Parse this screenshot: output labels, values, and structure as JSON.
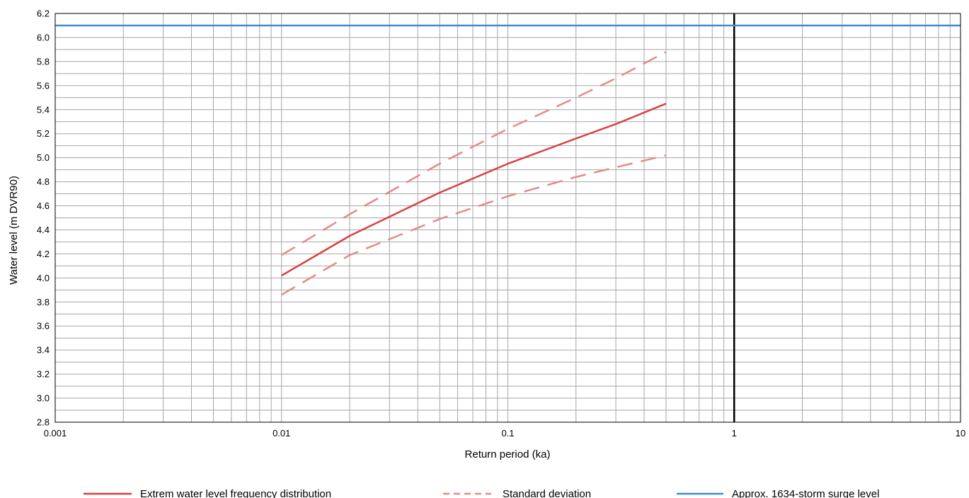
{
  "chart_data": {
    "type": "line",
    "title": "",
    "xlabel": "Return period (ka)",
    "ylabel": "Water level (m DVR90)",
    "xscale": "log",
    "xlim": [
      0.001,
      10
    ],
    "ylim": [
      2.8,
      6.2
    ],
    "x_ticks": [
      {
        "value": 0.001,
        "label": "0.001"
      },
      {
        "value": 0.01,
        "label": "0.01"
      },
      {
        "value": 0.1,
        "label": "0.1"
      },
      {
        "value": 1,
        "label": "1"
      },
      {
        "value": 10,
        "label": "10"
      }
    ],
    "y_ticks": [
      "2.8",
      "3.0",
      "3.2",
      "3.4",
      "3.6",
      "3.8",
      "4.0",
      "4.2",
      "4.4",
      "4.6",
      "4.8",
      "5.0",
      "5.2",
      "5.4",
      "5.6",
      "5.8",
      "6.0",
      "6.2"
    ],
    "grid": true,
    "vertical_reference_line": 1,
    "legend_position": "bottom",
    "series": [
      {
        "name": "Extrem water level frequency distribution",
        "color": "#d94141",
        "style": "solid",
        "x": [
          0.01,
          0.02,
          0.05,
          0.1,
          0.2,
          0.3,
          0.5
        ],
        "y": [
          4.02,
          4.35,
          4.71,
          4.95,
          5.16,
          5.28,
          5.45
        ]
      },
      {
        "name": "Standard deviation",
        "color": "#e58a8a",
        "style": "dashed",
        "x": [
          0.01,
          0.02,
          0.05,
          0.1,
          0.2,
          0.3,
          0.5
        ],
        "y": [
          4.19,
          4.53,
          4.95,
          5.24,
          5.5,
          5.66,
          5.88
        ]
      },
      {
        "name": "",
        "color": "#e58a8a",
        "style": "dashed",
        "x": [
          0.01,
          0.02,
          0.05,
          0.1,
          0.2,
          0.3,
          0.5
        ],
        "y": [
          3.86,
          4.19,
          4.49,
          4.68,
          4.84,
          4.92,
          5.02
        ]
      },
      {
        "name": "Approx. 1634-storm surge level",
        "color": "#3d8fd1",
        "style": "solid",
        "x": [
          0.001,
          10
        ],
        "y": [
          6.1,
          6.1
        ]
      }
    ]
  },
  "legend": [
    {
      "label": "Extrem water level frequency distribution",
      "color": "#d94141",
      "style": "solid"
    },
    {
      "label": "Standard deviation",
      "color": "#e58a8a",
      "style": "dashed"
    },
    {
      "label": "Approx. 1634-storm surge level",
      "color": "#3d8fd1",
      "style": "solid"
    }
  ]
}
